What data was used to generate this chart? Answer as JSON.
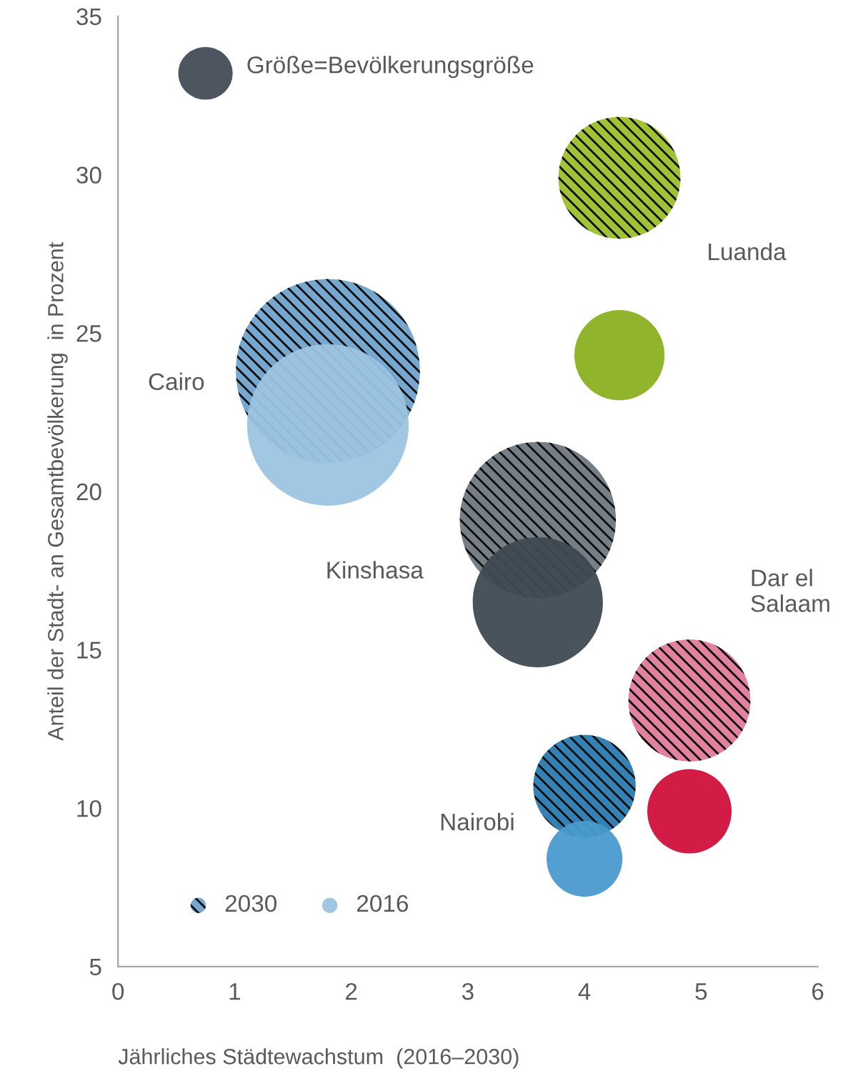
{
  "chart_data": {
    "type": "bubble",
    "xlabel": "Jährliches Städtewachstum  (2016–2030)",
    "ylabel": "Anteil der Stadt- an Gesamtbevölkerung  in Prozent",
    "xlim": [
      0,
      6
    ],
    "ylim": [
      5,
      35
    ],
    "xticks": [
      0,
      1,
      2,
      3,
      4,
      5,
      6
    ],
    "yticks": [
      5,
      10,
      15,
      20,
      25,
      30,
      35
    ],
    "grid": false,
    "legend": "bottom left",
    "series": [
      {
        "name": "2030",
        "x": [
          1.8,
          4.3,
          3.6,
          4.9,
          4.0
        ],
        "values": [
          23.8,
          29.9,
          19.1,
          13.4,
          10.7
        ],
        "sizes": [
          1,
          0.44,
          0.72,
          0.44,
          0.31
        ],
        "colors": [
          "#6fa3cc",
          "#9cbf2a",
          "#6f777f",
          "#e07b9a",
          "#2a7ab0"
        ]
      },
      {
        "name": "2016",
        "x": [
          1.8,
          4.3,
          3.6,
          4.9,
          4.0
        ],
        "values": [
          22.1,
          24.3,
          16.5,
          9.9,
          8.4
        ],
        "sizes": [
          0.77,
          0.24,
          0.5,
          0.21,
          0.17
        ],
        "colors": [
          "#9cc4e0",
          "#8ab020",
          "#3f4a52",
          "#d0103c",
          "#4a9ad0"
        ]
      }
    ],
    "annotations": [
      "Größe=Bevölkerungsgröße",
      "Cairo",
      "Luanda",
      "Kinshasa",
      "Dar el\nSalaam",
      "Nairobi"
    ]
  }
}
